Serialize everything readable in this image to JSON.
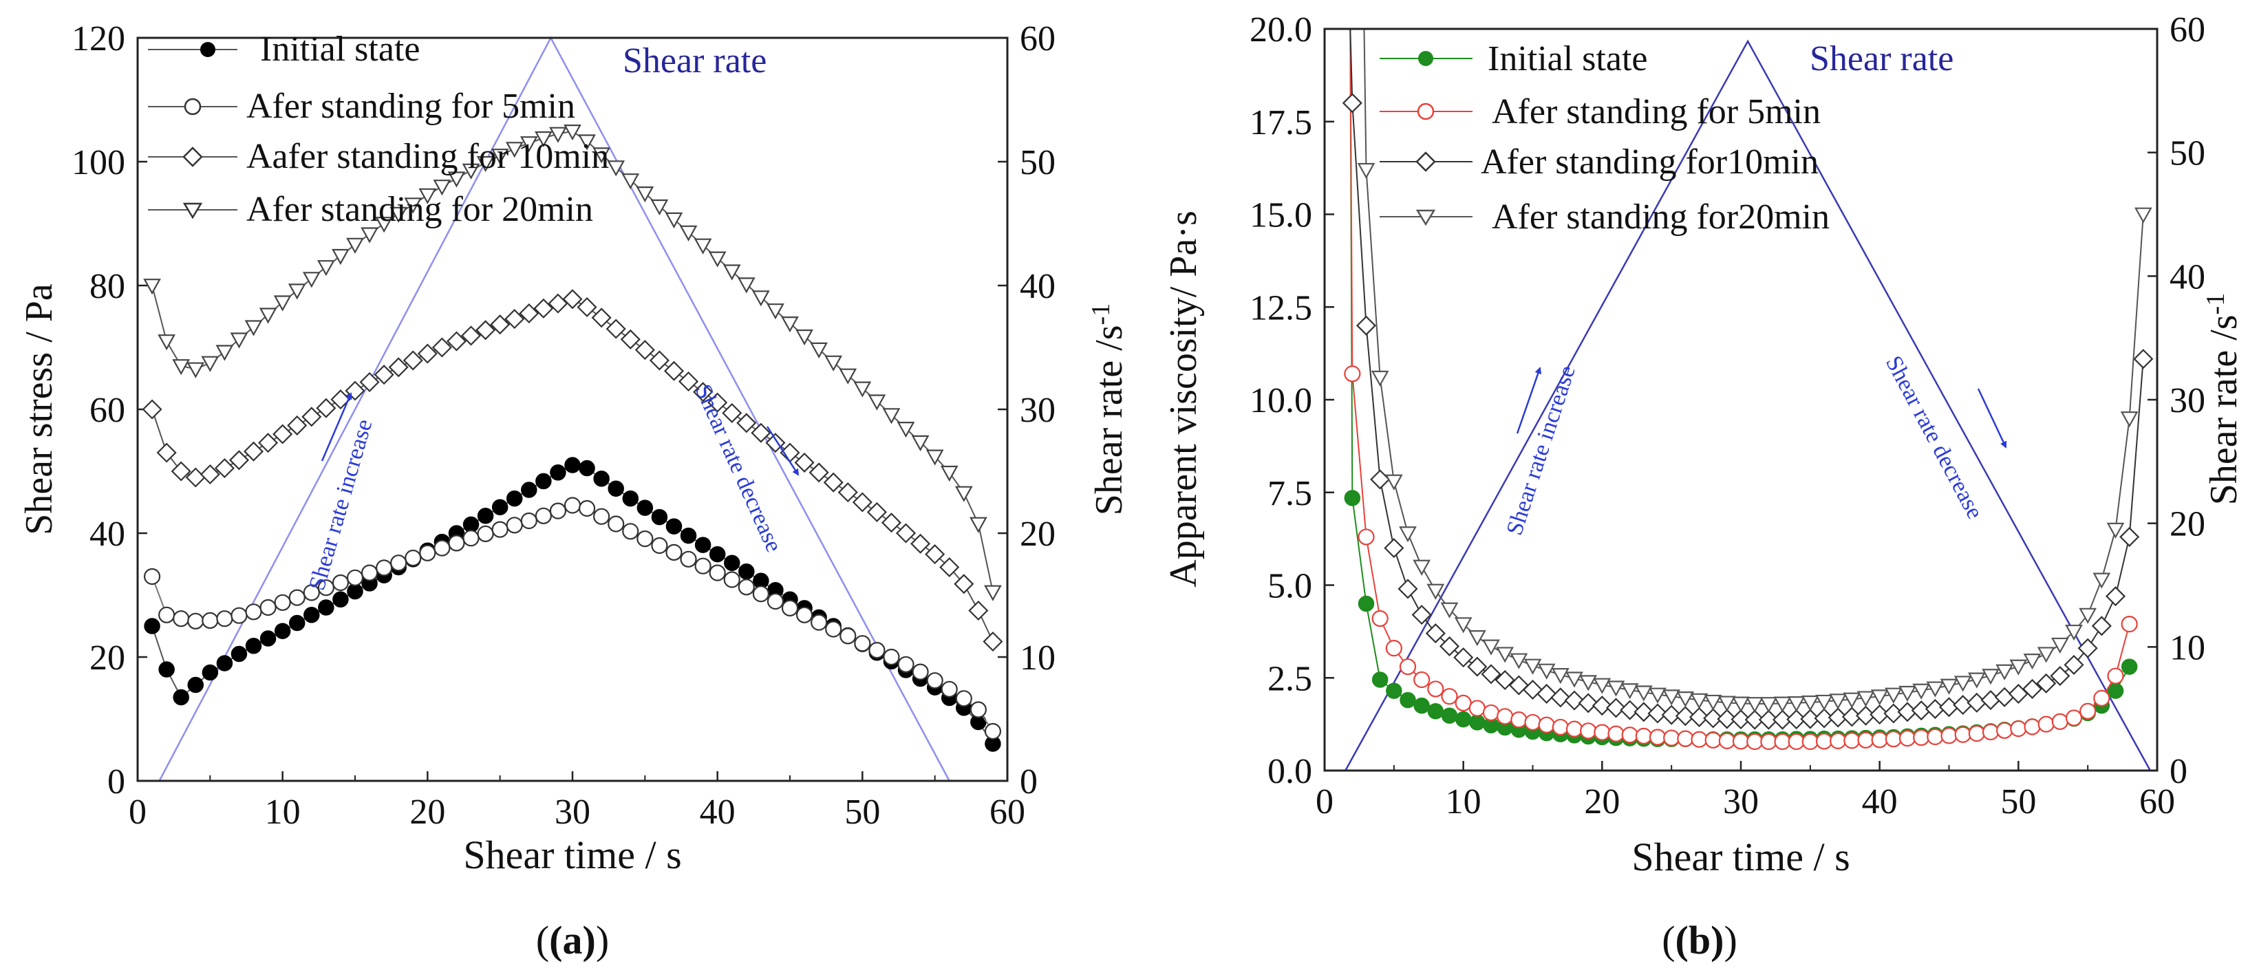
{
  "figure": {
    "panel_labels": [
      "(a)",
      "(b)"
    ]
  },
  "chart_data": [
    {
      "type": "line",
      "panel": "(a)",
      "xlabel": "Shear time / s",
      "ylabel": "Shear stress / Pa",
      "y2label": "Shear rate /s",
      "y2label_sup": "-1",
      "xlim": [
        0,
        60
      ],
      "ylim": [
        0,
        120
      ],
      "y2lim": [
        0,
        60
      ],
      "xticks": [
        0,
        10,
        20,
        30,
        40,
        50,
        60
      ],
      "yticks": [
        0,
        20,
        40,
        60,
        80,
        100,
        120
      ],
      "y2ticks": [
        0,
        10,
        20,
        30,
        40,
        50,
        60
      ],
      "legend": [
        {
          "label": "Initial state",
          "marker": "filled-circle"
        },
        {
          "label": "Afer standing for 5min",
          "marker": "open-circle"
        },
        {
          "label": "Aafer standing for 10min",
          "marker": "diamond"
        },
        {
          "label": "Afer standing for 20min",
          "marker": "triangle-down"
        }
      ],
      "shear_rate_label": "Shear rate",
      "shear_rate": {
        "x": [
          1.5,
          28.5,
          56
        ],
        "y": [
          0,
          60,
          0
        ]
      },
      "annotations": [
        "Shear rate increase",
        "Shear rate decrease"
      ],
      "series": [
        {
          "name": "Initial state",
          "x_start": 1,
          "dx": 1,
          "values": [
            25,
            18,
            13.5,
            15.5,
            17.5,
            19,
            20.5,
            21.8,
            23,
            24.2,
            25.5,
            26.8,
            28,
            29.3,
            30.6,
            31.9,
            33.2,
            34.5,
            35.8,
            37.2,
            38.6,
            40,
            41.4,
            42.8,
            44.2,
            45.6,
            47,
            48.4,
            49.8,
            51,
            50.5,
            48.8,
            47.2,
            45.6,
            44.1,
            42.6,
            41.1,
            39.6,
            38.1,
            36.6,
            35.2,
            33.8,
            32.3,
            30.8,
            29.3,
            27.9,
            26.4,
            25,
            23.5,
            22.1,
            20.7,
            19.3,
            17.9,
            16.5,
            15.1,
            13.4,
            11.8,
            9.5,
            6
          ]
        },
        {
          "name": "Afer standing for 5min",
          "x_start": 1,
          "dx": 1,
          "values": [
            33,
            26.8,
            26.2,
            25.8,
            25.9,
            26.2,
            26.7,
            27.3,
            28,
            28.8,
            29.6,
            30.4,
            31.2,
            32,
            32.8,
            33.6,
            34.4,
            35.2,
            36,
            36.8,
            37.6,
            38.4,
            39.2,
            39.9,
            40.6,
            41.3,
            42,
            42.8,
            43.6,
            44.5,
            44,
            42.7,
            41.5,
            40.3,
            39.1,
            38,
            36.9,
            35.8,
            34.7,
            33.6,
            32.5,
            31.3,
            30.2,
            29,
            27.9,
            26.8,
            25.6,
            24.5,
            23.4,
            22.2,
            21.1,
            20,
            18.8,
            17.6,
            16.2,
            14.8,
            13.3,
            11.5,
            8
          ]
        },
        {
          "name": "Aafer standing for 10min",
          "x_start": 1,
          "dx": 1,
          "values": [
            60,
            53,
            50,
            49,
            49.5,
            50.5,
            51.8,
            53.2,
            54.6,
            56,
            57.4,
            58.8,
            60.2,
            61.6,
            63,
            64.4,
            65.6,
            66.8,
            67.9,
            69,
            70,
            71,
            71.9,
            72.8,
            73.7,
            74.6,
            75.5,
            76.3,
            77.1,
            77.8,
            76.5,
            74.8,
            73,
            71.3,
            69.6,
            67.9,
            66.2,
            64.5,
            62.8,
            61.1,
            59.4,
            57.8,
            56.2,
            54.6,
            53,
            51.4,
            49.8,
            48.2,
            46.6,
            45,
            43.4,
            41.7,
            40,
            38.3,
            36.6,
            34.5,
            31.8,
            27.5,
            22.5
          ]
        },
        {
          "name": "Afer standing for 20min",
          "x_start": 1,
          "dx": 1,
          "values": [
            80,
            71,
            67,
            66.5,
            67.5,
            69.3,
            71.3,
            73.3,
            75.3,
            77.3,
            79.2,
            81.1,
            83,
            84.8,
            86.6,
            88.3,
            90,
            91.6,
            93.1,
            94.6,
            96,
            97.3,
            98.6,
            99.8,
            101,
            102.1,
            103,
            103.8,
            104.5,
            104.9,
            103.3,
            101.2,
            99.1,
            97,
            94.9,
            92.8,
            90.7,
            88.6,
            86.5,
            84.4,
            82.3,
            80.2,
            78.1,
            76,
            73.9,
            71.8,
            69.7,
            67.6,
            65.5,
            63.4,
            61.3,
            59.1,
            56.9,
            54.7,
            52.4,
            49.8,
            46.5,
            41.5,
            30.5
          ]
        }
      ]
    },
    {
      "type": "line",
      "panel": "(b)",
      "xlabel": "Shear time / s",
      "ylabel": "Apparent viscosity/ Pa·s",
      "y2label": "Shear rate /s",
      "y2label_sup": "-1",
      "xlim": [
        0,
        60
      ],
      "ylim": [
        0,
        20
      ],
      "y2lim": [
        0,
        60
      ],
      "xticks": [
        0,
        10,
        20,
        30,
        40,
        50,
        60
      ],
      "yticks": [
        "0.0",
        "2.5",
        "5.0",
        "7.5",
        "10.0",
        "12.5",
        "15.0",
        "17.5",
        "20.0"
      ],
      "y2ticks": [
        0,
        10,
        20,
        30,
        40,
        50,
        60
      ],
      "legend": [
        {
          "label": "Initial state",
          "marker": "filled-circle",
          "color": "#1e8c1e"
        },
        {
          "label": "Afer standing for 5min",
          "marker": "open-circle",
          "color": "#e8413a"
        },
        {
          "label": "Afer standing for10min",
          "marker": "diamond",
          "color": "#333333"
        },
        {
          "label": "Afer standing for20min",
          "marker": "triangle-down",
          "color": "#555555"
        }
      ],
      "shear_rate_label": "Shear rate",
      "shear_rate": {
        "x": [
          1.5,
          30.5,
          59.5
        ],
        "y": [
          0,
          59,
          0
        ]
      },
      "annotations": [
        "Shear rate increase",
        "Shear rate decrease"
      ],
      "series": [
        {
          "name": "Initial state",
          "x_start": 2,
          "dx": 1,
          "values": [
            7.35,
            4.5,
            2.45,
            2.15,
            1.9,
            1.75,
            1.6,
            1.48,
            1.38,
            1.3,
            1.22,
            1.16,
            1.1,
            1.05,
            1.01,
            0.98,
            0.95,
            0.92,
            0.9,
            0.88,
            0.87,
            0.86,
            0.85,
            0.85,
            0.85,
            0.84,
            0.84,
            0.84,
            0.84,
            0.84,
            0.84,
            0.84,
            0.85,
            0.85,
            0.86,
            0.86,
            0.87,
            0.88,
            0.89,
            0.9,
            0.92,
            0.94,
            0.96,
            0.98,
            1,
            1.03,
            1.06,
            1.1,
            1.14,
            1.19,
            1.25,
            1.32,
            1.4,
            1.55,
            1.75,
            2.15,
            2.8
          ]
        },
        {
          "name": "Afer standing for 5min",
          "x_start": 2,
          "dx": 1,
          "values": [
            10.7,
            6.3,
            4.1,
            3.3,
            2.8,
            2.45,
            2.2,
            2,
            1.82,
            1.68,
            1.56,
            1.46,
            1.37,
            1.3,
            1.23,
            1.17,
            1.12,
            1.07,
            1.03,
            0.99,
            0.96,
            0.93,
            0.9,
            0.88,
            0.86,
            0.84,
            0.82,
            0.8,
            0.79,
            0.78,
            0.78,
            0.78,
            0.78,
            0.78,
            0.79,
            0.8,
            0.81,
            0.82,
            0.83,
            0.85,
            0.87,
            0.89,
            0.91,
            0.94,
            0.97,
            1,
            1.04,
            1.08,
            1.13,
            1.18,
            1.25,
            1.32,
            1.42,
            1.6,
            1.95,
            2.55,
            3.95
          ]
        },
        {
          "name": "Afer standing for10min",
          "x_start": 2,
          "dx": 1,
          "values": [
            18,
            12,
            7.85,
            6,
            4.9,
            4.2,
            3.7,
            3.35,
            3.05,
            2.8,
            2.6,
            2.44,
            2.3,
            2.18,
            2.07,
            1.97,
            1.89,
            1.82,
            1.75,
            1.69,
            1.63,
            1.58,
            1.54,
            1.5,
            1.47,
            1.44,
            1.41,
            1.39,
            1.38,
            1.37,
            1.37,
            1.37,
            1.38,
            1.39,
            1.41,
            1.43,
            1.45,
            1.48,
            1.51,
            1.54,
            1.58,
            1.62,
            1.66,
            1.71,
            1.77,
            1.83,
            1.9,
            1.98,
            2.07,
            2.2,
            2.35,
            2.55,
            2.85,
            3.3,
            3.9,
            4.7,
            6.3,
            11.1
          ]
        },
        {
          "name": "Afer standing for20min",
          "x_start": 3,
          "dx": 1,
          "values": [
            16.2,
            10.6,
            7.8,
            6.4,
            5.5,
            4.85,
            4.35,
            3.95,
            3.6,
            3.35,
            3.15,
            2.98,
            2.83,
            2.7,
            2.58,
            2.48,
            2.39,
            2.31,
            2.24,
            2.17,
            2.11,
            2.05,
            2,
            1.95,
            1.9,
            1.86,
            1.83,
            1.81,
            1.8,
            1.8,
            1.81,
            1.82,
            1.84,
            1.86,
            1.89,
            1.92,
            1.96,
            2,
            2.05,
            2.1,
            2.16,
            2.22,
            2.29,
            2.37,
            2.46,
            2.56,
            2.68,
            2.81,
            2.97,
            3.15,
            3.4,
            3.75,
            4.2,
            5.15,
            6.5,
            9.5,
            15
          ]
        }
      ]
    }
  ]
}
